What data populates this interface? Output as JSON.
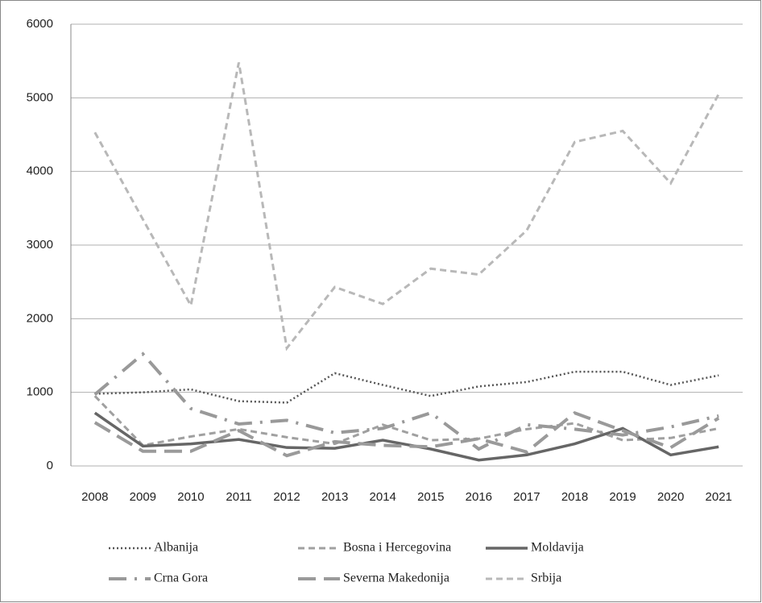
{
  "chart_data": {
    "type": "line",
    "x": [
      2008,
      2009,
      2010,
      2011,
      2012,
      2013,
      2014,
      2015,
      2016,
      2017,
      2018,
      2019,
      2020,
      2021
    ],
    "ylim": [
      0,
      6000
    ],
    "yticks": [
      0,
      1000,
      2000,
      3000,
      4000,
      5000,
      6000
    ],
    "grid": true,
    "legend": "bottom",
    "series": [
      {
        "name": "Albanija",
        "color": "#555555",
        "dash": "dotted",
        "values": [
          980,
          1000,
          1040,
          880,
          860,
          1260,
          1100,
          950,
          1080,
          1140,
          1280,
          1280,
          1100,
          1230
        ]
      },
      {
        "name": "Bosna i Hercegovina",
        "color": "#a0a0a0",
        "dash": "dashed",
        "values": [
          950,
          280,
          400,
          500,
          390,
          300,
          560,
          350,
          370,
          500,
          580,
          350,
          380,
          510
        ]
      },
      {
        "name": "Moldavija",
        "color": "#666666",
        "dash": "solid",
        "values": [
          720,
          270,
          300,
          360,
          250,
          240,
          350,
          230,
          80,
          150,
          300,
          510,
          150,
          260
        ]
      },
      {
        "name": "Crna Gora",
        "color": "#999999",
        "dash": "dashdot",
        "values": [
          970,
          1520,
          780,
          570,
          620,
          450,
          510,
          720,
          230,
          560,
          500,
          420,
          530,
          680
        ]
      },
      {
        "name": "Severna Makedonija",
        "color": "#9a9a9a",
        "dash": "longdash",
        "values": [
          590,
          200,
          200,
          480,
          140,
          330,
          280,
          260,
          370,
          190,
          720,
          480,
          250,
          650
        ]
      },
      {
        "name": "Srbija",
        "color": "#b8b8b8",
        "dash": "dashed",
        "values": [
          4530,
          3350,
          2180,
          5480,
          1600,
          2430,
          2200,
          2680,
          2600,
          3200,
          4400,
          4550,
          3840,
          5050
        ]
      }
    ]
  }
}
